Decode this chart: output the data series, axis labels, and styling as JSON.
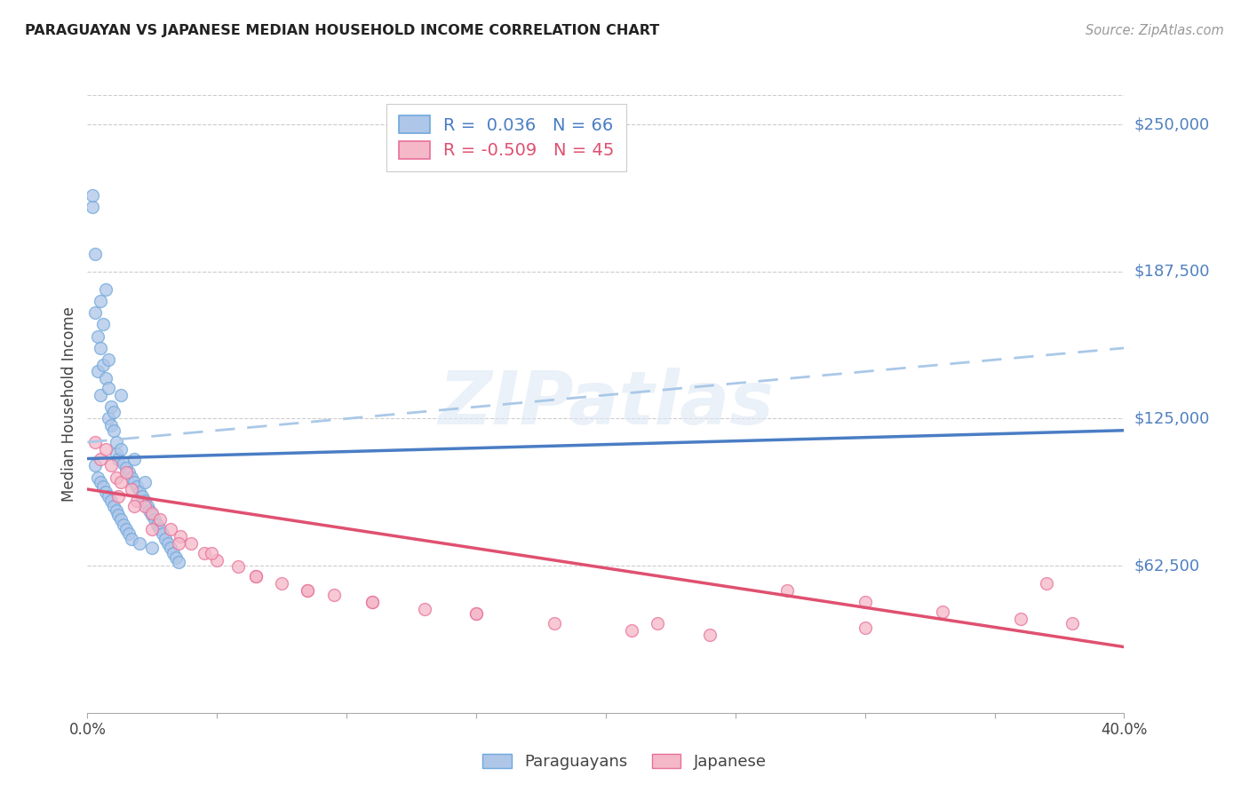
{
  "title": "PARAGUAYAN VS JAPANESE MEDIAN HOUSEHOLD INCOME CORRELATION CHART",
  "source": "Source: ZipAtlas.com",
  "ylabel": "Median Household Income",
  "ytick_values": [
    62500,
    125000,
    187500,
    250000
  ],
  "ymin": 0,
  "ymax": 262500,
  "xmin": 0.0,
  "xmax": 0.4,
  "watermark": "ZIPatlas",
  "legend_blue_R": "0.036",
  "legend_blue_N": "66",
  "legend_pink_R": "-0.509",
  "legend_pink_N": "45",
  "blue_scatter_color": "#aec6e8",
  "blue_edge_color": "#6fa8dc",
  "pink_scatter_color": "#f4b8c8",
  "pink_edge_color": "#e8709a",
  "trendline_blue_color": "#4a7dc4",
  "trendline_pink_color": "#e05070",
  "trendline_ci_color": "#aac8e8",
  "background_color": "#ffffff",
  "grid_color": "#cccccc",
  "paraguayans_x": [
    0.002,
    0.002,
    0.003,
    0.003,
    0.003,
    0.004,
    0.004,
    0.004,
    0.005,
    0.005,
    0.005,
    0.005,
    0.006,
    0.006,
    0.006,
    0.007,
    0.007,
    0.007,
    0.008,
    0.008,
    0.008,
    0.008,
    0.009,
    0.009,
    0.009,
    0.01,
    0.01,
    0.01,
    0.011,
    0.011,
    0.011,
    0.012,
    0.012,
    0.013,
    0.013,
    0.014,
    0.014,
    0.015,
    0.015,
    0.016,
    0.016,
    0.017,
    0.017,
    0.018,
    0.019,
    0.02,
    0.02,
    0.021,
    0.022,
    0.023,
    0.024,
    0.025,
    0.025,
    0.026,
    0.027,
    0.028,
    0.029,
    0.03,
    0.031,
    0.032,
    0.033,
    0.034,
    0.035,
    0.013,
    0.018,
    0.022
  ],
  "paraguayans_y": [
    215000,
    220000,
    195000,
    170000,
    105000,
    160000,
    145000,
    100000,
    175000,
    155000,
    135000,
    98000,
    165000,
    148000,
    96000,
    180000,
    142000,
    94000,
    150000,
    138000,
    125000,
    92000,
    130000,
    122000,
    90000,
    128000,
    120000,
    88000,
    115000,
    110000,
    86000,
    108000,
    84000,
    112000,
    82000,
    106000,
    80000,
    104000,
    78000,
    102000,
    76000,
    100000,
    74000,
    98000,
    96000,
    94000,
    72000,
    92000,
    90000,
    88000,
    86000,
    84000,
    70000,
    82000,
    80000,
    78000,
    76000,
    74000,
    72000,
    70000,
    68000,
    66000,
    64000,
    135000,
    108000,
    98000
  ],
  "japanese_x": [
    0.003,
    0.005,
    0.007,
    0.009,
    0.011,
    0.013,
    0.015,
    0.017,
    0.019,
    0.022,
    0.025,
    0.028,
    0.032,
    0.036,
    0.04,
    0.045,
    0.05,
    0.058,
    0.065,
    0.075,
    0.085,
    0.095,
    0.11,
    0.13,
    0.15,
    0.18,
    0.21,
    0.24,
    0.27,
    0.3,
    0.33,
    0.36,
    0.38,
    0.012,
    0.018,
    0.025,
    0.035,
    0.048,
    0.065,
    0.085,
    0.11,
    0.15,
    0.22,
    0.3,
    0.37
  ],
  "japanese_y": [
    115000,
    108000,
    112000,
    105000,
    100000,
    98000,
    102000,
    95000,
    90000,
    88000,
    85000,
    82000,
    78000,
    75000,
    72000,
    68000,
    65000,
    62000,
    58000,
    55000,
    52000,
    50000,
    47000,
    44000,
    42000,
    38000,
    35000,
    33000,
    52000,
    47000,
    43000,
    40000,
    38000,
    92000,
    88000,
    78000,
    72000,
    68000,
    58000,
    52000,
    47000,
    42000,
    38000,
    36000,
    55000
  ],
  "par_trend_x": [
    0.0,
    0.4
  ],
  "par_trend_y": [
    108000,
    120000
  ],
  "jap_trend_x": [
    0.0,
    0.4
  ],
  "jap_trend_y": [
    95000,
    28000
  ],
  "ci_trend_x": [
    0.0,
    0.4
  ],
  "ci_trend_y": [
    115000,
    155000
  ]
}
